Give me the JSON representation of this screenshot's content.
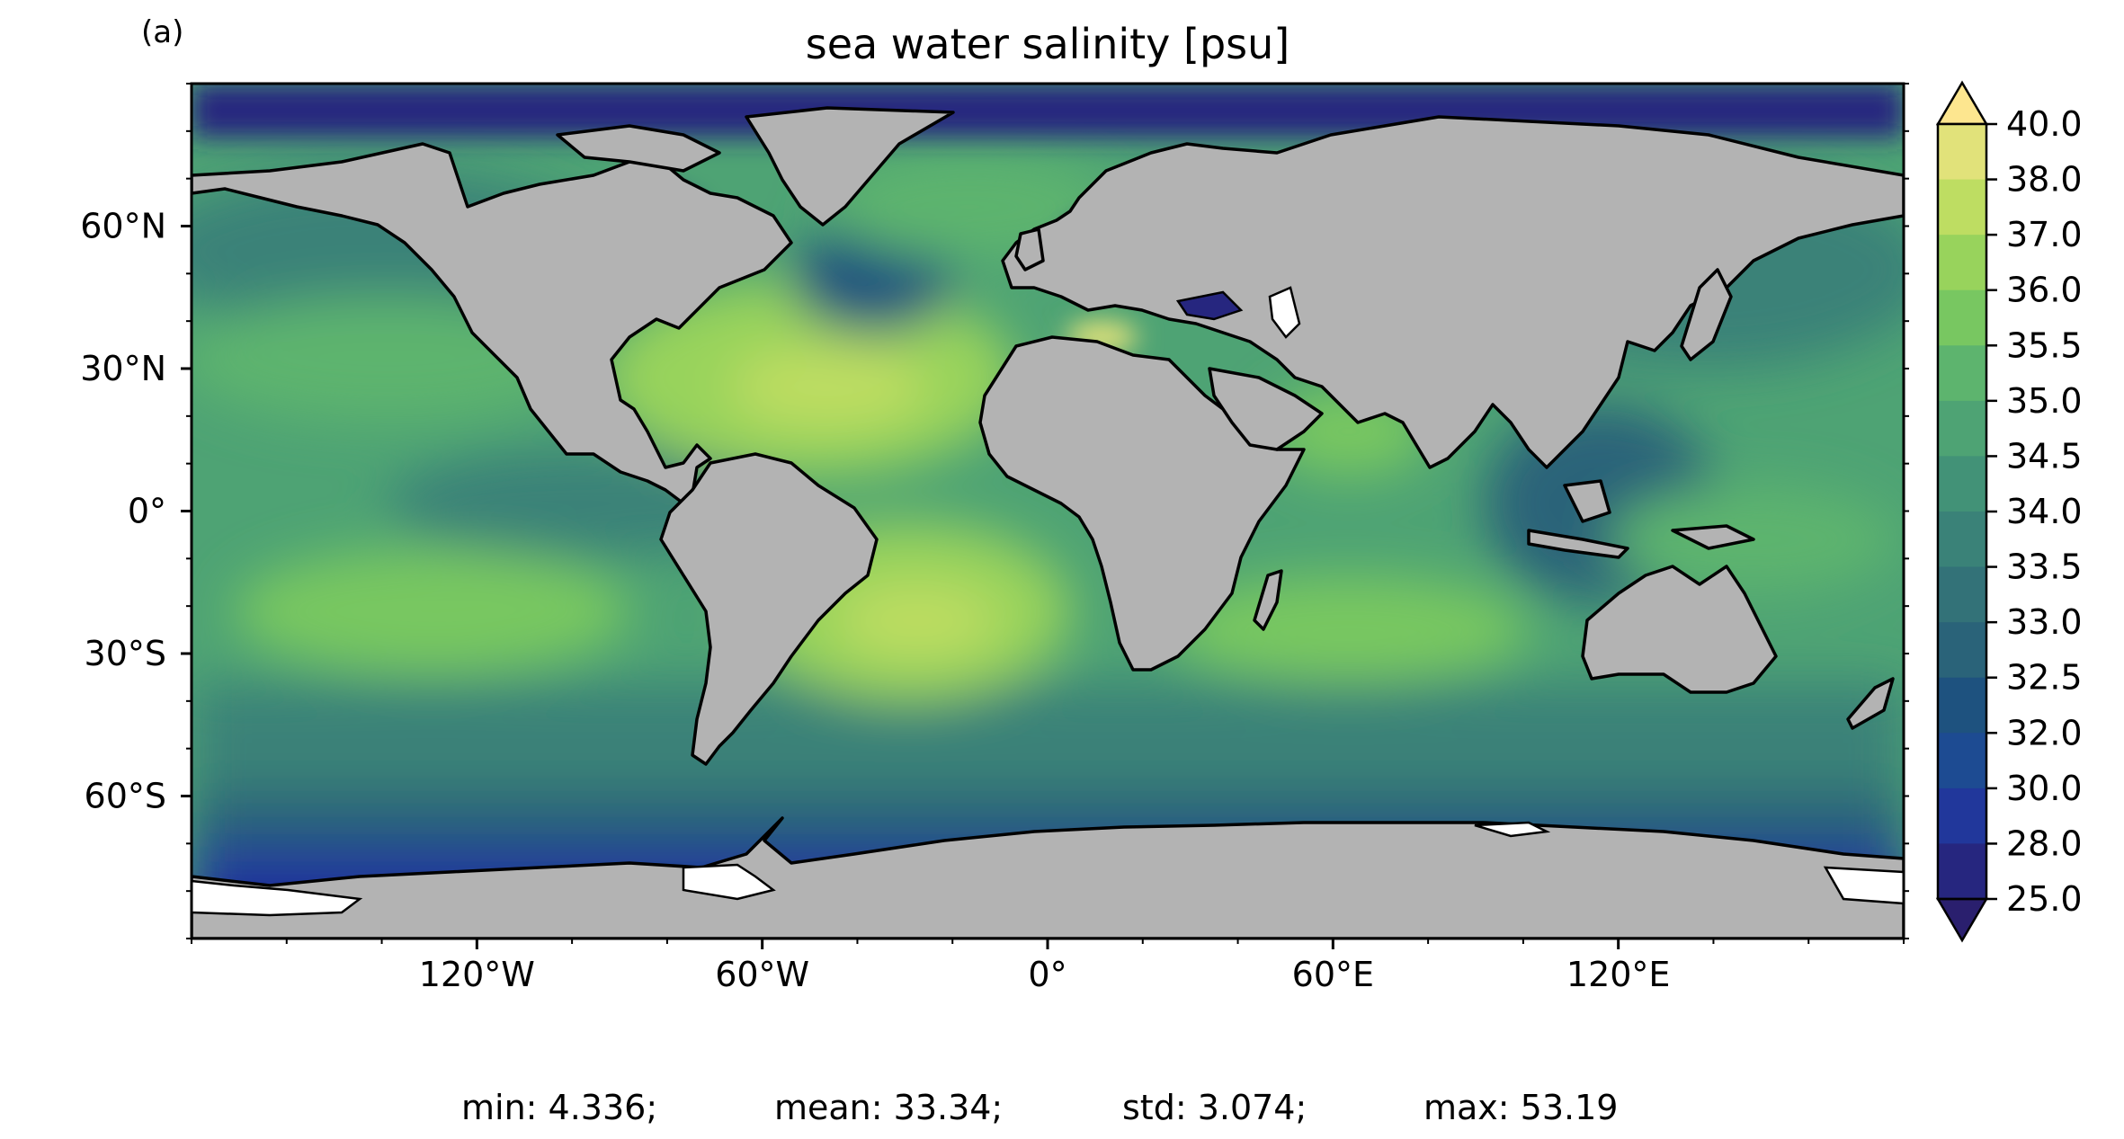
{
  "panel_label": "(a)",
  "title": "sea water salinity [psu]",
  "map": {
    "land_color": "#b3b3b3",
    "ice_color": "#ffffff",
    "coastline_color": "#000000",
    "lat_ticks": [
      {
        "label": "60°N",
        "value": 60
      },
      {
        "label": "30°N",
        "value": 30
      },
      {
        "label": "0°",
        "value": 0
      },
      {
        "label": "30°S",
        "value": -30
      },
      {
        "label": "60°S",
        "value": -60
      }
    ],
    "lon_ticks": [
      {
        "label": "120°W",
        "value": -120
      },
      {
        "label": "60°W",
        "value": -60
      },
      {
        "label": "0°",
        "value": 0
      },
      {
        "label": "60°E",
        "value": 60
      },
      {
        "label": "120°E",
        "value": 120
      }
    ],
    "lon_range": [
      -180,
      180
    ],
    "lat_range": [
      -90,
      90
    ]
  },
  "colorbar": {
    "labels": [
      "40.0",
      "38.0",
      "37.0",
      "36.0",
      "35.5",
      "35.0",
      "34.5",
      "34.0",
      "33.5",
      "33.0",
      "32.5",
      "32.0",
      "30.0",
      "28.0",
      "25.0"
    ],
    "colors": [
      "#fde68f",
      "#e1e27a",
      "#bedd62",
      "#98d35c",
      "#78c761",
      "#5db46e",
      "#4ea374",
      "#429277",
      "#3a8278",
      "#337278",
      "#2a6379",
      "#1e527f",
      "#1d4b92",
      "#21379b",
      "#26267f",
      "#2a1f6e"
    ]
  },
  "stats": {
    "min": "min: 4.336;",
    "mean": "mean: 33.34;",
    "std": "std: 3.074;",
    "max": "max: 53.19"
  }
}
